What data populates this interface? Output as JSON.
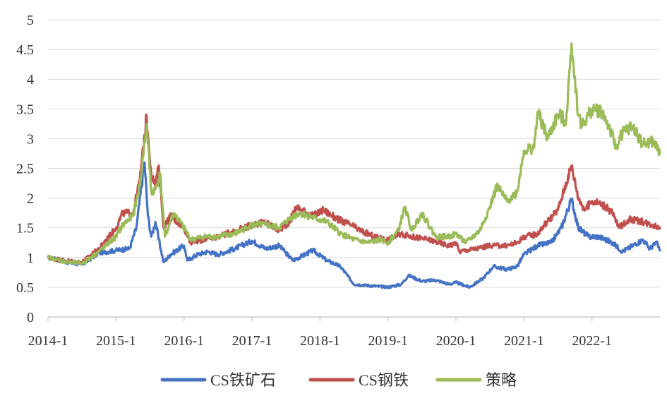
{
  "chart_data": {
    "type": "line",
    "title": "",
    "xlabel": "",
    "ylabel": "",
    "ylim": [
      0,
      5
    ],
    "xlim": [
      2014.0,
      2023.0
    ],
    "y_ticks": [
      "0",
      "0.5",
      "1",
      "1.5",
      "2",
      "2.5",
      "3",
      "3.5",
      "4",
      "4.5",
      "5"
    ],
    "y_tick_values": [
      0,
      0.5,
      1,
      1.5,
      2,
      2.5,
      3,
      3.5,
      4,
      4.5,
      5
    ],
    "x_ticks": [
      "2014-1",
      "2015-1",
      "2016-1",
      "2017-1",
      "2018-1",
      "2019-1",
      "2020-1",
      "2021-1",
      "2022-1"
    ],
    "x_tick_values": [
      2014,
      2015,
      2016,
      2017,
      2018,
      2019,
      2020,
      2021,
      2022
    ],
    "grid": "horizontal",
    "legend_position": "bottom",
    "series": [
      {
        "name": "CS铁矿石",
        "color": "#4472c4",
        "points": [
          [
            2014.0,
            1.0
          ],
          [
            2014.25,
            0.93
          ],
          [
            2014.5,
            0.88
          ],
          [
            2014.75,
            1.08
          ],
          [
            2015.0,
            1.12
          ],
          [
            2015.2,
            1.15
          ],
          [
            2015.3,
            1.5
          ],
          [
            2015.42,
            2.6
          ],
          [
            2015.47,
            1.7
          ],
          [
            2015.52,
            1.35
          ],
          [
            2015.58,
            1.6
          ],
          [
            2015.63,
            1.3
          ],
          [
            2015.7,
            0.92
          ],
          [
            2015.8,
            1.05
          ],
          [
            2016.0,
            1.2
          ],
          [
            2016.05,
            0.95
          ],
          [
            2016.2,
            1.05
          ],
          [
            2016.35,
            1.1
          ],
          [
            2016.5,
            1.05
          ],
          [
            2016.75,
            1.15
          ],
          [
            2017.0,
            1.28
          ],
          [
            2017.2,
            1.15
          ],
          [
            2017.4,
            1.2
          ],
          [
            2017.6,
            0.95
          ],
          [
            2017.9,
            1.12
          ],
          [
            2018.1,
            0.95
          ],
          [
            2018.3,
            0.85
          ],
          [
            2018.5,
            0.55
          ],
          [
            2018.8,
            0.52
          ],
          [
            2019.0,
            0.5
          ],
          [
            2019.2,
            0.55
          ],
          [
            2019.3,
            0.7
          ],
          [
            2019.5,
            0.6
          ],
          [
            2019.7,
            0.62
          ],
          [
            2019.9,
            0.55
          ],
          [
            2020.0,
            0.58
          ],
          [
            2020.2,
            0.5
          ],
          [
            2020.4,
            0.65
          ],
          [
            2020.55,
            0.85
          ],
          [
            2020.75,
            0.8
          ],
          [
            2020.9,
            0.85
          ],
          [
            2021.0,
            1.05
          ],
          [
            2021.2,
            1.2
          ],
          [
            2021.4,
            1.25
          ],
          [
            2021.55,
            1.5
          ],
          [
            2021.7,
            1.98
          ],
          [
            2021.8,
            1.5
          ],
          [
            2021.95,
            1.35
          ],
          [
            2022.1,
            1.35
          ],
          [
            2022.3,
            1.25
          ],
          [
            2022.45,
            1.1
          ],
          [
            2022.6,
            1.2
          ],
          [
            2022.75,
            1.3
          ],
          [
            2022.85,
            1.15
          ],
          [
            2022.95,
            1.25
          ],
          [
            2023.0,
            1.12
          ]
        ]
      },
      {
        "name": "CS钢铁",
        "color": "#c0504d",
        "points": [
          [
            2014.0,
            1.0
          ],
          [
            2014.25,
            0.95
          ],
          [
            2014.5,
            0.92
          ],
          [
            2014.75,
            1.15
          ],
          [
            2015.0,
            1.5
          ],
          [
            2015.1,
            1.75
          ],
          [
            2015.25,
            1.75
          ],
          [
            2015.35,
            2.3
          ],
          [
            2015.45,
            3.38
          ],
          [
            2015.52,
            2.4
          ],
          [
            2015.58,
            2.2
          ],
          [
            2015.63,
            2.55
          ],
          [
            2015.7,
            1.5
          ],
          [
            2015.8,
            1.7
          ],
          [
            2016.0,
            1.5
          ],
          [
            2016.1,
            1.25
          ],
          [
            2016.3,
            1.3
          ],
          [
            2016.5,
            1.35
          ],
          [
            2016.75,
            1.45
          ],
          [
            2017.0,
            1.55
          ],
          [
            2017.2,
            1.6
          ],
          [
            2017.4,
            1.45
          ],
          [
            2017.55,
            1.6
          ],
          [
            2017.65,
            1.85
          ],
          [
            2017.9,
            1.7
          ],
          [
            2018.05,
            1.8
          ],
          [
            2018.25,
            1.65
          ],
          [
            2018.45,
            1.55
          ],
          [
            2018.6,
            1.45
          ],
          [
            2018.8,
            1.35
          ],
          [
            2019.0,
            1.3
          ],
          [
            2019.2,
            1.4
          ],
          [
            2019.35,
            1.35
          ],
          [
            2019.6,
            1.3
          ],
          [
            2019.9,
            1.2
          ],
          [
            2020.0,
            1.25
          ],
          [
            2020.05,
            1.1
          ],
          [
            2020.3,
            1.15
          ],
          [
            2020.5,
            1.2
          ],
          [
            2020.75,
            1.2
          ],
          [
            2020.9,
            1.25
          ],
          [
            2021.0,
            1.35
          ],
          [
            2021.2,
            1.4
          ],
          [
            2021.3,
            1.55
          ],
          [
            2021.5,
            1.8
          ],
          [
            2021.7,
            2.55
          ],
          [
            2021.8,
            2.0
          ],
          [
            2021.9,
            1.8
          ],
          [
            2022.0,
            1.95
          ],
          [
            2022.15,
            1.9
          ],
          [
            2022.3,
            1.75
          ],
          [
            2022.4,
            1.5
          ],
          [
            2022.55,
            1.65
          ],
          [
            2022.75,
            1.6
          ],
          [
            2022.9,
            1.55
          ],
          [
            2023.0,
            1.5
          ]
        ]
      },
      {
        "name": "策略",
        "color": "#9bbb59",
        "points": [
          [
            2014.0,
            1.0
          ],
          [
            2014.25,
            0.93
          ],
          [
            2014.5,
            0.9
          ],
          [
            2014.75,
            1.1
          ],
          [
            2015.0,
            1.35
          ],
          [
            2015.1,
            1.55
          ],
          [
            2015.25,
            1.7
          ],
          [
            2015.35,
            2.2
          ],
          [
            2015.45,
            3.25
          ],
          [
            2015.52,
            2.1
          ],
          [
            2015.58,
            2.15
          ],
          [
            2015.65,
            2.4
          ],
          [
            2015.72,
            1.35
          ],
          [
            2015.85,
            1.75
          ],
          [
            2016.0,
            1.5
          ],
          [
            2016.1,
            1.3
          ],
          [
            2016.3,
            1.35
          ],
          [
            2016.5,
            1.35
          ],
          [
            2016.75,
            1.4
          ],
          [
            2017.0,
            1.55
          ],
          [
            2017.2,
            1.55
          ],
          [
            2017.4,
            1.5
          ],
          [
            2017.55,
            1.65
          ],
          [
            2017.7,
            1.75
          ],
          [
            2017.95,
            1.65
          ],
          [
            2018.1,
            1.6
          ],
          [
            2018.3,
            1.4
          ],
          [
            2018.5,
            1.3
          ],
          [
            2018.7,
            1.25
          ],
          [
            2018.9,
            1.3
          ],
          [
            2019.0,
            1.25
          ],
          [
            2019.15,
            1.45
          ],
          [
            2019.25,
            1.85
          ],
          [
            2019.35,
            1.45
          ],
          [
            2019.5,
            1.75
          ],
          [
            2019.7,
            1.35
          ],
          [
            2019.9,
            1.35
          ],
          [
            2020.0,
            1.4
          ],
          [
            2020.15,
            1.25
          ],
          [
            2020.35,
            1.45
          ],
          [
            2020.5,
            1.85
          ],
          [
            2020.6,
            2.2
          ],
          [
            2020.75,
            1.95
          ],
          [
            2020.9,
            2.1
          ],
          [
            2021.0,
            2.8
          ],
          [
            2021.15,
            2.85
          ],
          [
            2021.2,
            3.45
          ],
          [
            2021.35,
            3.0
          ],
          [
            2021.5,
            3.4
          ],
          [
            2021.62,
            3.3
          ],
          [
            2021.7,
            4.6
          ],
          [
            2021.8,
            3.4
          ],
          [
            2021.85,
            3.2
          ],
          [
            2022.0,
            3.5
          ],
          [
            2022.15,
            3.45
          ],
          [
            2022.25,
            3.2
          ],
          [
            2022.35,
            2.85
          ],
          [
            2022.45,
            3.1
          ],
          [
            2022.6,
            3.2
          ],
          [
            2022.75,
            2.9
          ],
          [
            2022.9,
            2.95
          ],
          [
            2023.0,
            2.75
          ]
        ]
      }
    ]
  }
}
